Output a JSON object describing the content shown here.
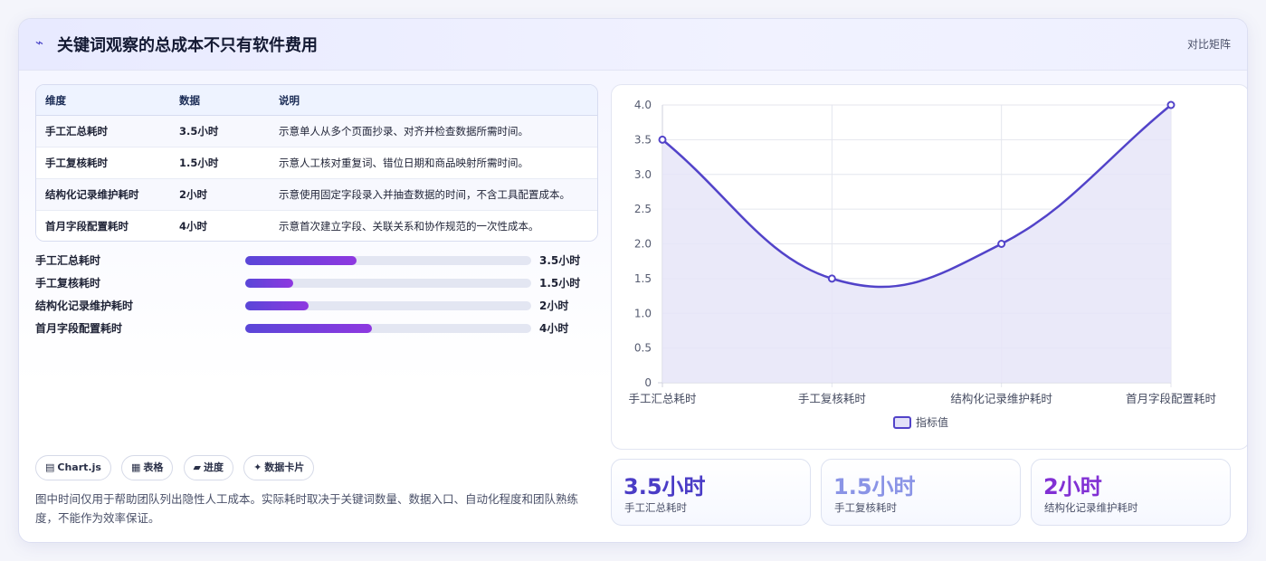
{
  "header": {
    "icon": "trend-icon",
    "title": "关键词观察的总成本不只有软件费用",
    "link": "对比矩阵"
  },
  "table": {
    "headers": [
      "维度",
      "数据",
      "说明"
    ],
    "rows": [
      [
        "手工汇总耗时",
        "3.5小时",
        "示意单人从多个页面抄录、对齐并检查数据所需时间。"
      ],
      [
        "手工复核耗时",
        "1.5小时",
        "示意人工核对重复词、错位日期和商品映射所需时间。"
      ],
      [
        "结构化记录维护耗时",
        "2小时",
        "示意使用固定字段录入并抽查数据的时间，不含工具配置成本。"
      ],
      [
        "首月字段配置耗时",
        "4小时",
        "示意首次建立字段、关联关系和协作规范的一次性成本。"
      ]
    ]
  },
  "progress": [
    {
      "label": "手工汇总耗时",
      "value": 3.5,
      "value_label": "3.5小时"
    },
    {
      "label": "手工复核耗时",
      "value": 1.5,
      "value_label": "1.5小时"
    },
    {
      "label": "结构化记录维护耗时",
      "value": 2,
      "value_label": "2小时"
    },
    {
      "label": "首月字段配置耗时",
      "value": 4,
      "value_label": "4小时"
    }
  ],
  "progress_max": 9,
  "chips": [
    {
      "icon": "chart-icon",
      "glyph": "▤",
      "label": "Chart.js"
    },
    {
      "icon": "table-icon",
      "glyph": "▦",
      "label": "表格"
    },
    {
      "icon": "progress-icon",
      "glyph": "▰",
      "label": "进度"
    },
    {
      "icon": "card-icon",
      "glyph": "✦",
      "label": "数据卡片"
    }
  ],
  "note": "图中时间仅用于帮助团队列出隐性人工成本。实际耗时取决于关键词数量、数据入口、自动化程度和团队熟练度，不能作为效率保证。",
  "chart_data": {
    "type": "line",
    "categories": [
      "手工汇总耗时",
      "手工复核耗时",
      "结构化记录维护耗时",
      "首月字段配置耗时"
    ],
    "series": [
      {
        "name": "指标值",
        "values": [
          3.5,
          1.5,
          2,
          4
        ]
      }
    ],
    "ylim": [
      0,
      4
    ],
    "yticks": [
      "0",
      "0.5",
      "1.0",
      "1.5",
      "2.0",
      "2.5",
      "3.0",
      "3.5",
      "4.0"
    ],
    "fill": "area",
    "grid": true,
    "legend": "bottom",
    "colors": {
      "line": "#5243c9",
      "fill": "#e6e5f8"
    }
  },
  "stats": [
    {
      "value": "3.5小时",
      "label": "手工汇总耗时",
      "color": "#4a3cc6"
    },
    {
      "value": "1.5小时",
      "label": "手工复核耗时",
      "color": "#8a94e6"
    },
    {
      "value": "2小时",
      "label": "结构化记录维护耗时",
      "color": "#8130d4"
    }
  ]
}
